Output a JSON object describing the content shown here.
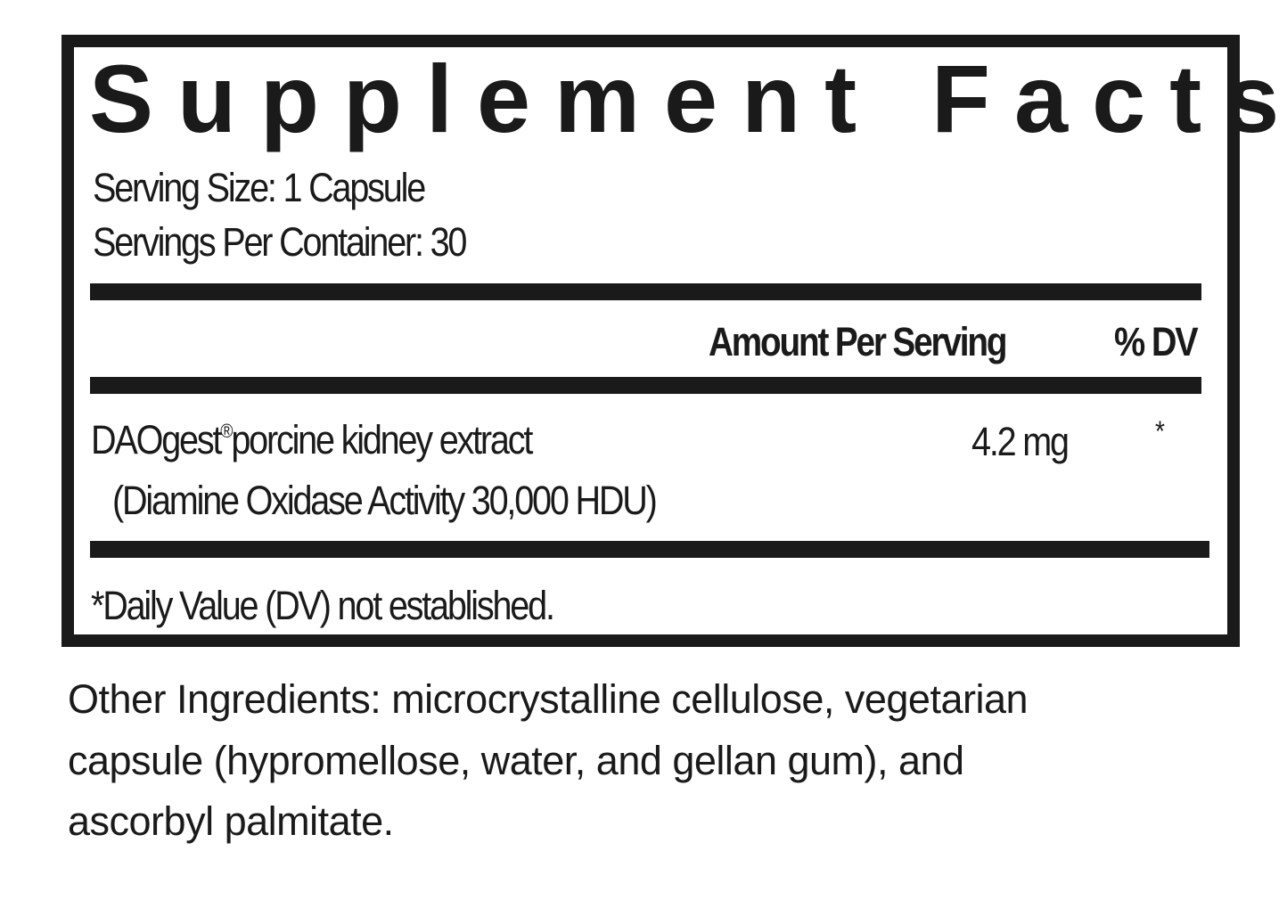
{
  "title": "Supplement Facts",
  "serving_size": "Serving Size: 1 Capsule",
  "servings_per_container": "Servings Per Container: 30",
  "header": {
    "amount": "Amount Per Serving",
    "dv": "% DV"
  },
  "ingredients": [
    {
      "name": "DAOgest",
      "mark": "®",
      "name_rest": "porcine kidney extract",
      "detail": "(Diamine Oxidase Activity 30,000 HDU)",
      "amount": "4.2 mg",
      "dv": "*"
    }
  ],
  "footnote": "*Daily Value (DV) not established.",
  "other_ingredients": [
    "Other Ingredients: microcrystalline cellulose, vegetarian",
    "capsule (hypromellose, water, and gellan gum), and",
    "ascorbyl palmitate."
  ]
}
